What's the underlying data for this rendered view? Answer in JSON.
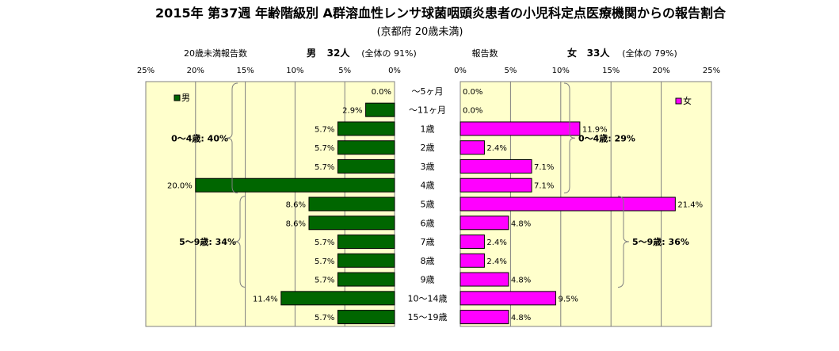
{
  "title": "2015年 第37週 年齢階級別 A群溶血性レンサ球菌咽頭炎患者の小児科定点医療機関からの報告割合",
  "subtitle": "(京都府 20歳未満)",
  "left_header": {
    "label": "20歳未満報告数",
    "sex": "男",
    "count": "32人",
    "share": "(全体の 91%)"
  },
  "right_header": {
    "label": "報告数",
    "sex": "女",
    "count": "33人",
    "share": "(全体の 79%)"
  },
  "chart_data": {
    "type": "bar",
    "orientation": "horizontal-pyramid",
    "categories": [
      "〜5ヶ月",
      "〜11ヶ月",
      "1歳",
      "2歳",
      "3歳",
      "4歳",
      "5歳",
      "6歳",
      "7歳",
      "8歳",
      "9歳",
      "10〜14歳",
      "15〜19歳"
    ],
    "series": [
      {
        "name": "男",
        "color": "#006600",
        "values": [
          0.0,
          2.9,
          5.7,
          5.7,
          5.7,
          20.0,
          8.6,
          8.6,
          5.7,
          5.7,
          5.7,
          11.4,
          5.7
        ]
      },
      {
        "name": "女",
        "color": "#ff00ff",
        "values": [
          0.0,
          0.0,
          11.9,
          2.4,
          7.1,
          7.1,
          21.4,
          4.8,
          2.4,
          2.4,
          4.8,
          9.5,
          4.8
        ]
      }
    ],
    "xlim": [
      0,
      25
    ],
    "ticks": [
      0,
      5,
      10,
      15,
      20,
      25
    ],
    "tick_suffix": "%",
    "value_suffix": "%",
    "plot_background": "#ffffcc",
    "grid": true,
    "brackets": {
      "left": [
        {
          "label": "0〜4歳: 40%",
          "from": "〜5ヶ月",
          "to": "4歳"
        },
        {
          "label": "5〜9歳: 34%",
          "from": "5歳",
          "to": "9歳"
        }
      ],
      "right": [
        {
          "label": "0〜4歳: 29%",
          "from": "〜5ヶ月",
          "to": "4歳"
        },
        {
          "label": "5〜9歳: 36%",
          "from": "5歳",
          "to": "9歳"
        }
      ]
    }
  }
}
